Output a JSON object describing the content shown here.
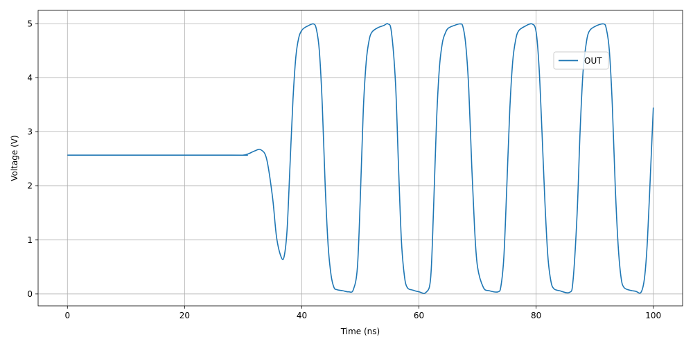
{
  "chart_data": {
    "type": "line",
    "xlabel": "Time (ns)",
    "ylabel": "Voltage (V)",
    "xlim": [
      -5,
      105
    ],
    "ylim": [
      -0.22,
      5.25
    ],
    "xticks": [
      0,
      20,
      40,
      60,
      80,
      100
    ],
    "yticks": [
      0,
      1,
      2,
      3,
      4,
      5
    ],
    "grid": true,
    "legend_position": "upper right",
    "series": [
      {
        "name": "OUT",
        "color": "#1f77b4",
        "x": [
          0,
          28,
          30,
          31,
          32,
          33,
          34,
          35,
          35.7,
          36.5,
          37,
          37.5,
          38,
          38.5,
          39,
          39.5,
          40,
          40.5,
          41,
          42,
          42.5,
          43,
          43.5,
          44,
          44.5,
          45,
          45.5,
          46,
          47,
          48,
          48.8,
          49.5,
          50,
          50.5,
          51,
          51.5,
          52,
          53,
          54,
          54.7,
          55.3,
          56,
          56.5,
          57,
          57.5,
          58,
          59,
          60,
          61.2,
          62,
          62.5,
          63,
          63.5,
          64,
          64.5,
          65,
          66,
          67,
          67.5,
          68,
          68.5,
          69,
          69.5,
          70,
          71,
          72,
          73.5,
          74,
          74.5,
          75,
          75.5,
          76,
          76.5,
          77,
          78,
          79.3,
          80,
          80.5,
          81,
          81.5,
          82,
          82.5,
          83,
          84,
          85.7,
          86.3,
          87,
          87.5,
          88,
          88.5,
          89,
          90,
          91.5,
          92,
          92.5,
          93,
          93.5,
          94,
          94.5,
          95,
          96,
          97,
          97.9,
          98.5,
          99,
          99.5,
          100
        ],
        "y": [
          2.57,
          2.57,
          2.57,
          2.6,
          2.65,
          2.67,
          2.5,
          1.8,
          1.05,
          0.68,
          0.7,
          1.2,
          2.4,
          3.6,
          4.4,
          4.75,
          4.88,
          4.93,
          4.96,
          5.0,
          4.9,
          4.5,
          3.5,
          2.0,
          0.9,
          0.35,
          0.12,
          0.08,
          0.06,
          0.04,
          0.08,
          0.5,
          1.8,
          3.4,
          4.3,
          4.7,
          4.85,
          4.93,
          4.97,
          5.0,
          4.85,
          3.9,
          2.4,
          1.0,
          0.35,
          0.12,
          0.07,
          0.04,
          0.03,
          0.3,
          1.6,
          3.2,
          4.2,
          4.65,
          4.83,
          4.92,
          4.97,
          5.0,
          4.95,
          4.6,
          3.8,
          2.4,
          1.2,
          0.5,
          0.12,
          0.06,
          0.04,
          0.15,
          0.7,
          2.0,
          3.4,
          4.3,
          4.7,
          4.87,
          4.95,
          5.0,
          4.85,
          4.2,
          3.0,
          1.7,
          0.7,
          0.25,
          0.1,
          0.06,
          0.03,
          0.25,
          1.5,
          3.0,
          4.1,
          4.6,
          4.85,
          4.95,
          5.0,
          4.9,
          4.5,
          3.5,
          2.0,
          0.9,
          0.3,
          0.12,
          0.07,
          0.05,
          0.03,
          0.3,
          1.0,
          2.2,
          3.45
        ]
      }
    ]
  }
}
